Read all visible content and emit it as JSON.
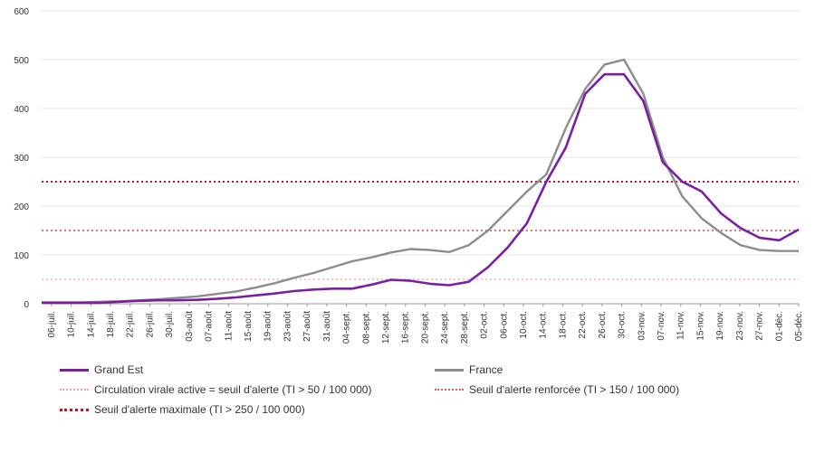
{
  "chart_data": {
    "type": "line",
    "title": "",
    "xlabel": "",
    "ylabel": "",
    "ylim": [
      0,
      600
    ],
    "y_ticks": [
      "0",
      "100",
      "200",
      "300",
      "400",
      "500",
      "600"
    ],
    "x_tick_labels": [
      "06-juil.",
      "10-juil.",
      "14-juil.",
      "18-juil.",
      "22-juil.",
      "26-juil.",
      "30-juil.",
      "03-août",
      "07-août",
      "11-août",
      "15-août",
      "19-août",
      "23-août",
      "27-août",
      "31-août",
      "04-sept.",
      "08-sept.",
      "12-sept.",
      "16-sept.",
      "20-sept.",
      "24-sept.",
      "28-sept.",
      "02-oct.",
      "06-oct.",
      "10-oct.",
      "14-oct.",
      "18-oct.",
      "22-oct.",
      "26-oct.",
      "30-oct.",
      "03-nov.",
      "07-nov.",
      "11-nov.",
      "15-nov.",
      "19-nov.",
      "23-nov.",
      "27-nov.",
      "01-déc.",
      "05-déc."
    ],
    "grid": true,
    "legend_position": "bottom",
    "series": [
      {
        "name": "Grand Est",
        "color": "#7b1fa2",
        "values": [
          2,
          2,
          2,
          2,
          4,
          6,
          7,
          7,
          8,
          10,
          13,
          17,
          21,
          26,
          29,
          31,
          31,
          39,
          49,
          47,
          41,
          38,
          45,
          75,
          115,
          165,
          250,
          320,
          430,
          470,
          470,
          415,
          290,
          250,
          230,
          185,
          155,
          135,
          130,
          152
        ]
      },
      {
        "name": "France",
        "color": "#8c8c8c",
        "values": [
          3,
          3,
          3,
          4,
          5,
          7,
          9,
          12,
          15,
          20,
          25,
          33,
          42,
          53,
          63,
          75,
          87,
          95,
          105,
          112,
          110,
          106,
          120,
          150,
          190,
          230,
          265,
          360,
          440,
          490,
          500,
          430,
          300,
          220,
          175,
          145,
          120,
          110,
          108,
          108
        ]
      },
      {
        "name": "Circulation virale active = seuil d'alerte (TI > 50 / 100 000)",
        "color": "#f4a3a3",
        "values": [
          50
        ]
      },
      {
        "name": "Seuil d'alerte renforcée (TI > 150 / 100 000)",
        "color": "#e06060",
        "values": [
          150
        ]
      },
      {
        "name": "Seuil d'alerte maximale (TI > 250 / 100 000)",
        "color": "#c8102e",
        "values": [
          250
        ]
      }
    ]
  }
}
